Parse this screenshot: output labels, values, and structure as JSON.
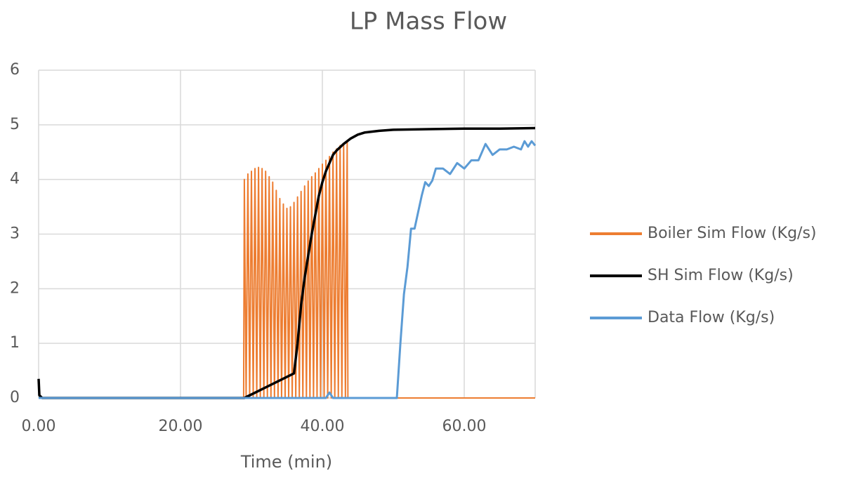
{
  "chart_data": {
    "type": "line",
    "title": "LP Mass Flow",
    "x_label": "Time (min)",
    "xlim": [
      0,
      70
    ],
    "xticks": [
      {
        "value": 0,
        "label": "0.00"
      },
      {
        "value": 20,
        "label": "20.00"
      },
      {
        "value": 40,
        "label": "40.00"
      },
      {
        "value": 60,
        "label": "60.00"
      }
    ],
    "ylim": [
      0,
      6
    ],
    "yticks": [
      0,
      1,
      2,
      3,
      4,
      5,
      6
    ],
    "grid": true,
    "legend": "right",
    "series": [
      {
        "name": "Boiler Sim Flow (Kg/s)",
        "color": "#ed7d31",
        "x": [
          0,
          28.9,
          29,
          29.25,
          29.5,
          29.75,
          30,
          30.25,
          30.5,
          30.75,
          31,
          31.25,
          31.5,
          31.75,
          32,
          32.25,
          32.5,
          32.75,
          33,
          33.25,
          33.5,
          33.75,
          34,
          34.25,
          34.5,
          34.75,
          35,
          35.25,
          35.5,
          35.75,
          36,
          36.25,
          36.5,
          36.75,
          37,
          37.25,
          37.5,
          37.75,
          38,
          38.25,
          38.5,
          38.75,
          39,
          39.25,
          39.5,
          39.75,
          40,
          40.25,
          40.5,
          40.75,
          41,
          41.25,
          41.5,
          41.75,
          42,
          42.25,
          42.5,
          42.75,
          43,
          43.25,
          43.5,
          43.6,
          70
        ],
        "values": [
          0,
          0,
          4.0,
          0,
          4.1,
          0,
          4.15,
          0,
          4.2,
          0,
          4.22,
          0,
          4.2,
          0,
          4.15,
          0,
          4.05,
          0,
          3.95,
          0,
          3.8,
          0,
          3.65,
          0,
          3.55,
          0,
          3.47,
          0,
          3.5,
          0,
          3.58,
          0,
          3.68,
          0,
          3.78,
          0,
          3.88,
          0,
          3.97,
          0,
          4.05,
          0,
          4.12,
          0,
          4.2,
          0,
          4.28,
          0,
          4.35,
          0,
          4.42,
          0,
          4.5,
          0,
          4.56,
          0,
          4.62,
          0,
          4.66,
          0,
          4.7,
          0,
          0
        ]
      },
      {
        "name": "SH Sim Flow (Kg/s)",
        "color": "#000000",
        "x": [
          0,
          0.1,
          0.5,
          29,
          36,
          36.5,
          37,
          37.5,
          38,
          38.5,
          39,
          39.5,
          40,
          40.5,
          41,
          41.5,
          42,
          43,
          44,
          45,
          46,
          48,
          50,
          55,
          60,
          65,
          70
        ],
        "values": [
          0.35,
          0.05,
          0,
          0,
          0.45,
          1.0,
          1.7,
          2.2,
          2.6,
          3.0,
          3.35,
          3.7,
          3.95,
          4.15,
          4.3,
          4.45,
          4.53,
          4.65,
          4.75,
          4.82,
          4.86,
          4.89,
          4.91,
          4.92,
          4.93,
          4.93,
          4.94
        ]
      },
      {
        "name": "Data Flow (Kg/s)",
        "color": "#5b9bd5",
        "x": [
          0,
          40.5,
          41,
          41.5,
          50.5,
          51,
          51.5,
          52,
          52.5,
          53,
          53.5,
          54,
          54.5,
          55,
          55.5,
          56,
          57,
          58,
          59,
          60,
          61,
          62,
          63,
          64,
          65,
          66,
          67,
          68,
          68.5,
          69,
          69.5,
          70
        ],
        "values": [
          0,
          0,
          0.1,
          0,
          0,
          1.0,
          1.9,
          2.4,
          3.1,
          3.1,
          3.4,
          3.7,
          3.95,
          3.88,
          3.98,
          4.2,
          4.2,
          4.1,
          4.3,
          4.2,
          4.35,
          4.35,
          4.65,
          4.45,
          4.55,
          4.55,
          4.6,
          4.55,
          4.7,
          4.6,
          4.7,
          4.62
        ]
      }
    ]
  }
}
